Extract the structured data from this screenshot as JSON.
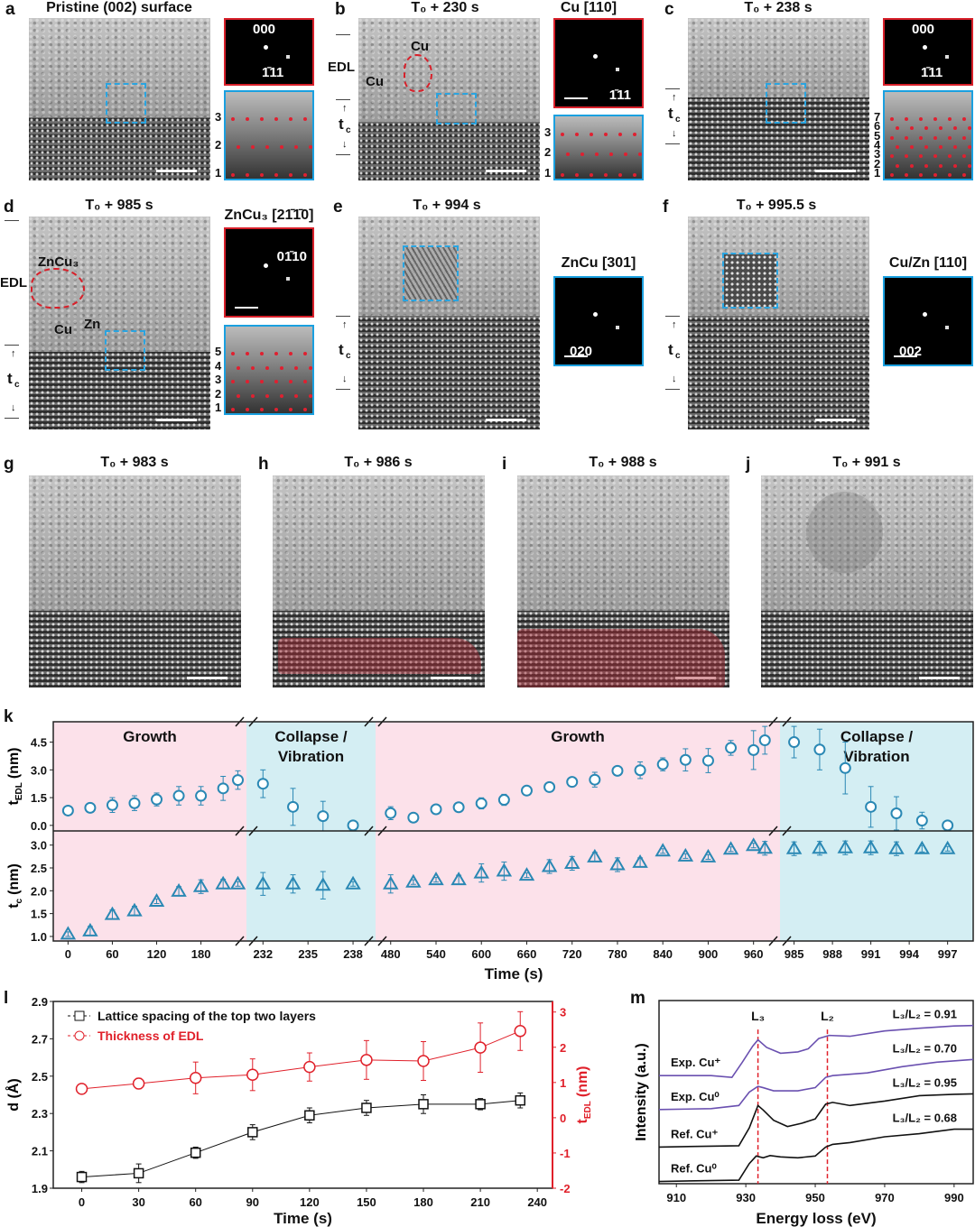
{
  "panels": {
    "a": {
      "letter": "a",
      "title": "Pristine (002) surface",
      "fft_labels": [
        "000",
        "1̄11"
      ],
      "layers": [
        "3",
        "2",
        "1"
      ]
    },
    "b": {
      "letter": "b",
      "title": "T₀ + 230 s",
      "inset_title": "Cu [110]",
      "fft_labels": [
        "1̄11"
      ],
      "layers": [
        "3",
        "2",
        "1"
      ],
      "annotations": [
        "Cu",
        "Cu",
        "EDL",
        "t",
        "c"
      ]
    },
    "c": {
      "letter": "c",
      "title": "T₀ + 238 s",
      "fft_labels": [
        "000",
        "1̄11"
      ],
      "layers": [
        "7",
        "6",
        "5",
        "4",
        "3",
        "2",
        "1"
      ],
      "annotations": [
        "t",
        "c"
      ]
    },
    "d": {
      "letter": "d",
      "title": "T₀ + 985 s",
      "inset_title": "ZnCu₃ [21̄1̄0]",
      "fft_labels": [
        "01̄10"
      ],
      "layers": [
        "5",
        "4",
        "3",
        "2",
        "1"
      ],
      "annotations": [
        "ZnCu₃",
        "Cu",
        "Zn",
        "EDL",
        "t",
        "c"
      ]
    },
    "e": {
      "letter": "e",
      "title": "T₀ + 994 s",
      "inset_title": "ZnCu [301]",
      "fft_labels": [
        "020"
      ],
      "annotations": [
        "t",
        "c"
      ]
    },
    "f": {
      "letter": "f",
      "title": "T₀ + 995.5 s",
      "inset_title": "Cu/Zn [110]",
      "fft_labels": [
        "002"
      ],
      "annotations": [
        "t",
        "c"
      ]
    },
    "g": {
      "letter": "g",
      "title": "T₀ + 983 s"
    },
    "h": {
      "letter": "h",
      "title": "T₀ + 986 s"
    },
    "i": {
      "letter": "i",
      "title": "T₀ + 988 s"
    },
    "j": {
      "letter": "j",
      "title": "T₀ + 991 s"
    }
  },
  "colors": {
    "growth_bg": "#fce1ea",
    "collapse_bg": "#d4eef3",
    "marker": "#2a88b4",
    "edl_red": "#e0202a",
    "exp_purple": "#6a50b0",
    "ref_black": "#111111",
    "highlight_red": "#aa2832"
  },
  "chart_data": [
    {
      "panel": "k",
      "type": "scatter",
      "xlabel": "Time (s)",
      "broken_x_axis": true,
      "regions": [
        {
          "label": [
            "Growth"
          ],
          "kind": "growth",
          "xlim": [
            -20,
            241.6
          ],
          "ticks": [
            0,
            60,
            120,
            180
          ]
        },
        {
          "label": [
            "Collapse /",
            "Vibration"
          ],
          "kind": "collapse",
          "xlim": [
            230.9,
            239.5
          ],
          "ticks": [
            232,
            235,
            238
          ]
        },
        {
          "label": [
            "Growth"
          ],
          "kind": "growth",
          "xlim": [
            460,
            995
          ],
          "ticks": [
            480,
            540,
            600,
            660,
            720,
            780,
            840,
            900,
            960
          ]
        },
        {
          "label": [
            "Collapse /",
            "Vibration"
          ],
          "kind": "collapse",
          "xlim": [
            983.9,
            999
          ],
          "ticks": [
            985,
            988,
            991,
            994,
            997
          ]
        }
      ],
      "top": {
        "ylabel": "t",
        "ylabel_sub": "EDL",
        "ylabel_unit": "(nm)",
        "ylim": [
          -0.3,
          5.6
        ],
        "yticks": [
          0.0,
          1.5,
          3.0,
          4.5
        ],
        "marker": "circle",
        "segments": [
          {
            "x": [
              0,
              30,
              60,
              90,
              120,
              150,
              180,
              210,
              230
            ],
            "y": [
              0.8,
              0.95,
              1.1,
              1.2,
              1.4,
              1.6,
              1.6,
              2.0,
              2.45
            ],
            "err": [
              0.1,
              0.1,
              0.4,
              0.4,
              0.35,
              0.5,
              0.5,
              0.65,
              0.5
            ]
          },
          {
            "x": [
              232,
              234,
              236,
              238
            ],
            "y": [
              2.25,
              1.0,
              0.5,
              0.0
            ],
            "err": [
              0.75,
              1.0,
              0.8,
              0.05
            ]
          },
          {
            "x": [
              480,
              510,
              540,
              570,
              600,
              630,
              660,
              690,
              720,
              750,
              780,
              810,
              840,
              870,
              900,
              930,
              960,
              975
            ],
            "y": [
              0.66,
              0.42,
              0.87,
              0.98,
              1.19,
              1.38,
              1.88,
              2.07,
              2.35,
              2.47,
              2.95,
              2.98,
              3.3,
              3.54,
              3.5,
              4.19,
              4.07,
              4.6
            ],
            "err": [
              0.35,
              0.1,
              0.15,
              0.1,
              0.3,
              0.3,
              0.1,
              0.1,
              0.15,
              0.4,
              0.25,
              0.45,
              0.35,
              0.6,
              0.65,
              0.4,
              1.05,
              0.75
            ]
          },
          {
            "x": [
              985,
              987,
              989,
              991,
              993,
              995,
              997
            ],
            "y": [
              4.5,
              4.1,
              3.1,
              1.0,
              0.65,
              0.26,
              0.0
            ],
            "err": [
              0.85,
              1.1,
              1.4,
              1.1,
              0.9,
              0.45,
              0.05
            ]
          }
        ]
      },
      "bottom": {
        "ylabel": "t",
        "ylabel_sub": "c",
        "ylabel_unit": "(nm)",
        "ylim": [
          0.9,
          3.31
        ],
        "yticks": [
          1.0,
          1.5,
          2.0,
          2.5,
          3.0
        ],
        "marker": "triangle",
        "segments": [
          {
            "x": [
              0,
              30,
              60,
              90,
              120,
              150,
              180,
              210,
              230
            ],
            "y": [
              1.05,
              1.12,
              1.48,
              1.56,
              1.77,
              1.99,
              2.09,
              2.15,
              2.15
            ],
            "err": [
              0.05,
              0.1,
              0.1,
              0.1,
              0.05,
              0.1,
              0.15,
              0.1,
              0.05
            ]
          },
          {
            "x": [
              232,
              234,
              236,
              238
            ],
            "y": [
              2.15,
              2.15,
              2.12,
              2.15
            ],
            "err": [
              0.25,
              0.2,
              0.3,
              0.05
            ]
          },
          {
            "x": [
              480,
              510,
              540,
              570,
              600,
              630,
              660,
              690,
              720,
              750,
              780,
              810,
              840,
              870,
              900,
              930,
              960,
              975
            ],
            "y": [
              2.15,
              2.19,
              2.24,
              2.24,
              2.39,
              2.43,
              2.34,
              2.53,
              2.6,
              2.74,
              2.57,
              2.62,
              2.87,
              2.76,
              2.74,
              2.91,
              2.99,
              2.93
            ],
            "err": [
              0.2,
              0.05,
              0.05,
              0.1,
              0.2,
              0.2,
              0.05,
              0.15,
              0.15,
              0.1,
              0.15,
              0.1,
              0.05,
              0.05,
              0.05,
              0.05,
              0.05,
              0.15
            ]
          },
          {
            "x": [
              985,
              987,
              989,
              991,
              993,
              995,
              997
            ],
            "y": [
              2.92,
              2.93,
              2.94,
              2.94,
              2.92,
              2.92,
              2.92
            ],
            "err": [
              0.15,
              0.15,
              0.15,
              0.15,
              0.15,
              0.07,
              0.05
            ]
          }
        ]
      }
    },
    {
      "panel": "l",
      "type": "line",
      "xlabel": "Time (s)",
      "xlim": [
        -15,
        248
      ],
      "xticks": [
        0,
        30,
        60,
        90,
        120,
        150,
        180,
        210,
        240
      ],
      "ylabel": "d (Å)",
      "ylim": [
        1.9,
        2.9
      ],
      "yticks": [
        1.9,
        2.1,
        2.3,
        2.5,
        2.7,
        2.9
      ],
      "y2label": "t",
      "y2label_sub": "EDL",
      "y2label_unit": "(nm)",
      "y2lim": [
        -2,
        3.3
      ],
      "y2ticks": [
        -2,
        -1,
        0,
        1,
        2,
        3
      ],
      "legend_position": "top-left",
      "x": [
        0,
        30,
        60,
        90,
        120,
        150,
        180,
        210,
        231
      ],
      "series": [
        {
          "name": "Lattice spacing of the top two layers",
          "axis": "left",
          "marker": "square",
          "values": [
            1.96,
            1.98,
            2.09,
            2.2,
            2.29,
            2.33,
            2.35,
            2.35,
            2.37
          ],
          "err": [
            0.03,
            0.05,
            0.03,
            0.04,
            0.04,
            0.04,
            0.05,
            0.03,
            0.04
          ]
        },
        {
          "name": "Thickness of EDL",
          "axis": "right",
          "marker": "circle",
          "values": [
            0.82,
            0.97,
            1.13,
            1.22,
            1.44,
            1.64,
            1.61,
            1.99,
            2.46
          ],
          "err": [
            0.05,
            0.15,
            0.45,
            0.45,
            0.4,
            0.55,
            0.55,
            0.7,
            0.55
          ]
        }
      ]
    },
    {
      "panel": "m",
      "type": "line",
      "xlabel": "Energy loss (eV)",
      "ylabel": "Intensity (a.u.)",
      "xlim": [
        905,
        995.5
      ],
      "xticks": [
        910,
        930,
        950,
        970,
        990
      ],
      "ylim": [
        -0.05,
        4.05
      ],
      "edge_markers": [
        {
          "label": "L₃",
          "x": 933.5
        },
        {
          "label": "L₂",
          "x": 953.5
        }
      ],
      "series": [
        {
          "name": "Exp. Cu⁺",
          "ratio": "L₃/L₂ = 0.91",
          "kind": "exp",
          "points": [
            [
              905,
              2.37
            ],
            [
              920,
              2.37
            ],
            [
              926,
              2.33
            ],
            [
              929,
              2.67
            ],
            [
              932,
              3.03
            ],
            [
              933.5,
              3.17
            ],
            [
              936,
              3.0
            ],
            [
              940,
              2.87
            ],
            [
              945,
              2.9
            ],
            [
              948,
              2.97
            ],
            [
              951,
              3.2
            ],
            [
              954,
              3.27
            ],
            [
              960,
              3.25
            ],
            [
              970,
              3.37
            ],
            [
              980,
              3.43
            ],
            [
              990,
              3.48
            ],
            [
              995.5,
              3.49
            ]
          ]
        },
        {
          "name": "Exp. Cu⁰",
          "ratio": "L₃/L₂ = 0.70",
          "kind": "exp",
          "points": [
            [
              905,
              1.61
            ],
            [
              920,
              1.63
            ],
            [
              928,
              1.7
            ],
            [
              931,
              2.0
            ],
            [
              933.5,
              2.13
            ],
            [
              935,
              2.1
            ],
            [
              938,
              2.03
            ],
            [
              945,
              2.03
            ],
            [
              950,
              2.1
            ],
            [
              953,
              2.33
            ],
            [
              955,
              2.37
            ],
            [
              965,
              2.43
            ],
            [
              975,
              2.57
            ],
            [
              985,
              2.67
            ],
            [
              995.5,
              2.73
            ]
          ]
        },
        {
          "name": "Ref. Cu⁺",
          "ratio": "L₃/L₂ = 0.95",
          "kind": "ref",
          "points": [
            [
              905,
              0.77
            ],
            [
              928,
              0.8
            ],
            [
              931,
              1.2
            ],
            [
              933.5,
              1.7
            ],
            [
              935,
              1.6
            ],
            [
              938,
              1.37
            ],
            [
              942,
              1.23
            ],
            [
              946,
              1.3
            ],
            [
              950,
              1.4
            ],
            [
              953,
              1.73
            ],
            [
              955,
              1.77
            ],
            [
              960,
              1.7
            ],
            [
              970,
              1.8
            ],
            [
              980,
              1.92
            ],
            [
              990,
              1.95
            ],
            [
              995.5,
              1.96
            ]
          ]
        },
        {
          "name": "Ref. Cu⁰",
          "ratio": "L₃/L₂ = 0.68",
          "kind": "ref",
          "points": [
            [
              905,
              0.0
            ],
            [
              928,
              0.03
            ],
            [
              931,
              0.4
            ],
            [
              933,
              0.57
            ],
            [
              935,
              0.53
            ],
            [
              937,
              0.58
            ],
            [
              940,
              0.55
            ],
            [
              945,
              0.53
            ],
            [
              950,
              0.57
            ],
            [
              953,
              0.77
            ],
            [
              955,
              0.83
            ],
            [
              960,
              0.87
            ],
            [
              970,
              1.0
            ],
            [
              980,
              1.07
            ],
            [
              990,
              1.17
            ],
            [
              995.5,
              1.17
            ]
          ]
        }
      ]
    }
  ],
  "panel_letters": {
    "k": "k",
    "l": "l",
    "m": "m"
  }
}
